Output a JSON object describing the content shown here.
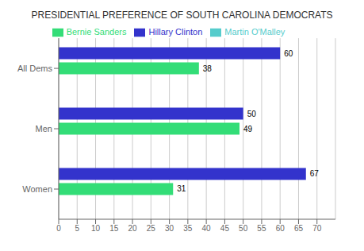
{
  "chart_data": {
    "type": "bar",
    "orientation": "horizontal",
    "title": "PRESIDENTIAL PREFERENCE OF SOUTH CAROLINA DEMOCRATS",
    "categories": [
      "Women",
      "Men",
      "All Dems"
    ],
    "series": [
      {
        "name": "Hillary Clinton",
        "color": "#3333cc",
        "values": [
          67,
          50,
          60
        ]
      },
      {
        "name": "Bernie Sanders",
        "color": "#33dd77",
        "values": [
          31,
          49,
          38
        ]
      },
      {
        "name": "Martin O'Malley",
        "color": "#55cccc",
        "values": [
          0,
          0,
          0
        ]
      }
    ],
    "xlim": [
      0,
      75
    ],
    "xticks": [
      0,
      5,
      10,
      15,
      20,
      25,
      30,
      35,
      40,
      45,
      50,
      55,
      60,
      65,
      70
    ],
    "grid": true,
    "data_labels": true,
    "legend": "top"
  }
}
